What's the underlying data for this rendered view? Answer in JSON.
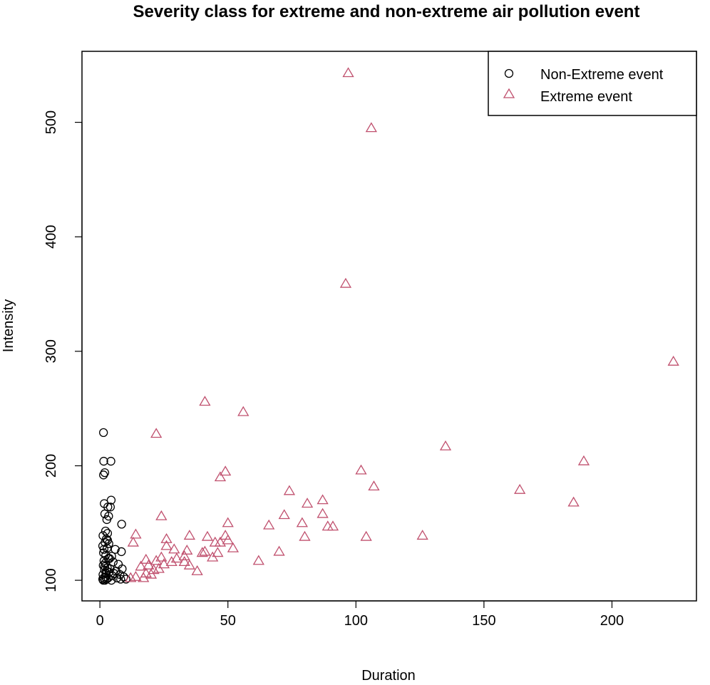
{
  "chart_data": {
    "type": "scatter",
    "title": "Severity class for extreme and non-extreme air pollution event",
    "xlabel": "Duration",
    "ylabel": "Intensity",
    "xlim": [
      -7,
      233
    ],
    "ylim": [
      82,
      562
    ],
    "x_ticks": [
      0,
      50,
      100,
      150,
      200
    ],
    "y_ticks": [
      100,
      200,
      300,
      400,
      500
    ],
    "grid": false,
    "legend_position": "top-right",
    "colors": {
      "non_extreme": "#000000",
      "extreme": "#c0506e"
    },
    "series": [
      {
        "name": "Non-Extreme event",
        "marker": "circle",
        "points": [
          [
            1.4,
            229
          ],
          [
            1.5,
            204
          ],
          [
            4.3,
            204
          ],
          [
            1.9,
            194
          ],
          [
            1.4,
            192
          ],
          [
            4.4,
            170
          ],
          [
            1.7,
            167
          ],
          [
            3.1,
            164
          ],
          [
            4.1,
            164
          ],
          [
            1.9,
            158
          ],
          [
            3.4,
            156
          ],
          [
            2.7,
            153
          ],
          [
            8.5,
            149
          ],
          [
            2.2,
            143
          ],
          [
            3.0,
            141
          ],
          [
            1.2,
            139
          ],
          [
            2.5,
            136
          ],
          [
            2.0,
            133
          ],
          [
            3.5,
            132
          ],
          [
            1.1,
            130
          ],
          [
            2.8,
            128
          ],
          [
            6.0,
            127
          ],
          [
            8.4,
            125
          ],
          [
            1.4,
            124
          ],
          [
            4.6,
            121
          ],
          [
            3.3,
            119
          ],
          [
            1.6,
            117
          ],
          [
            5.2,
            116
          ],
          [
            2.1,
            115
          ],
          [
            7.2,
            114
          ],
          [
            1.3,
            113
          ],
          [
            2.9,
            111
          ],
          [
            4.0,
            110
          ],
          [
            8.7,
            110
          ],
          [
            1.8,
            109
          ],
          [
            6.3,
            108
          ],
          [
            3.6,
            107
          ],
          [
            2.4,
            106
          ],
          [
            5.5,
            106
          ],
          [
            1.2,
            105
          ],
          [
            7.8,
            105
          ],
          [
            4.8,
            104
          ],
          [
            2.2,
            103
          ],
          [
            9.3,
            103
          ],
          [
            1.5,
            102
          ],
          [
            3.2,
            102
          ],
          [
            6.7,
            102
          ],
          [
            1.1,
            101
          ],
          [
            2.6,
            101
          ],
          [
            8.1,
            101
          ],
          [
            1.3,
            100
          ],
          [
            4.5,
            100
          ],
          [
            2.0,
            100
          ],
          [
            10.2,
            101
          ],
          [
            3.0,
            135
          ],
          [
            1.6,
            127
          ],
          [
            2.3,
            122
          ],
          [
            3.8,
            119
          ],
          [
            1.9,
            112
          ],
          [
            2.7,
            108
          ]
        ]
      },
      {
        "name": "Extreme event",
        "marker": "triangle",
        "points": [
          [
            97,
            543
          ],
          [
            106,
            495
          ],
          [
            96,
            359
          ],
          [
            224,
            291
          ],
          [
            41,
            256
          ],
          [
            56,
            247
          ],
          [
            22,
            228
          ],
          [
            135,
            217
          ],
          [
            189,
            204
          ],
          [
            102,
            196
          ],
          [
            49,
            195
          ],
          [
            47,
            190
          ],
          [
            107,
            182
          ],
          [
            74,
            178
          ],
          [
            164,
            179
          ],
          [
            87,
            170
          ],
          [
            81,
            167
          ],
          [
            185,
            168
          ],
          [
            72,
            157
          ],
          [
            87,
            158
          ],
          [
            24,
            156
          ],
          [
            79,
            150
          ],
          [
            50,
            150
          ],
          [
            66,
            148
          ],
          [
            89,
            147
          ],
          [
            91,
            147
          ],
          [
            14,
            140
          ],
          [
            35,
            139
          ],
          [
            42,
            138
          ],
          [
            49,
            139
          ],
          [
            126,
            139
          ],
          [
            104,
            138
          ],
          [
            80,
            138
          ],
          [
            26,
            136
          ],
          [
            50,
            135
          ],
          [
            13,
            133
          ],
          [
            45,
            133
          ],
          [
            47,
            133
          ],
          [
            29,
            127
          ],
          [
            52,
            128
          ],
          [
            34,
            126
          ],
          [
            41,
            125
          ],
          [
            70,
            125
          ],
          [
            40,
            124
          ],
          [
            46,
            124
          ],
          [
            33,
            121
          ],
          [
            44,
            120
          ],
          [
            62,
            117
          ],
          [
            22,
            117
          ],
          [
            28,
            116
          ],
          [
            33,
            116
          ],
          [
            25,
            114
          ],
          [
            19,
            113
          ],
          [
            35,
            113
          ],
          [
            16,
            112
          ],
          [
            23,
            110
          ],
          [
            38,
            108
          ],
          [
            18,
            106
          ],
          [
            20,
            105
          ],
          [
            14,
            103
          ],
          [
            12,
            102
          ],
          [
            17,
            102
          ],
          [
            21,
            109
          ],
          [
            24,
            120
          ],
          [
            26,
            130
          ],
          [
            18,
            118
          ],
          [
            30,
            119
          ]
        ]
      }
    ]
  }
}
